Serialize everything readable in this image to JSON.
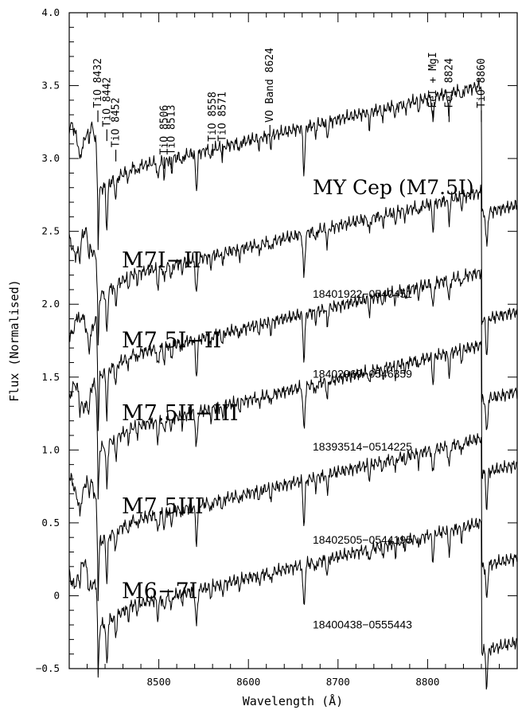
{
  "chart_data": {
    "type": "line",
    "xlabel": "Wavelength (Å)",
    "ylabel": "Flux (Normalised)",
    "xlim": [
      8400,
      8900
    ],
    "ylim": [
      -0.5,
      4.0
    ],
    "x_ticks": [
      8500,
      8600,
      8700,
      8800
    ],
    "y_ticks": [
      -0.5,
      0,
      0.5,
      1.0,
      1.5,
      2.0,
      2.5,
      3.0,
      3.5,
      4.0
    ],
    "y_tick_labels": [
      "−0.5",
      "0",
      "0.5",
      "1.0",
      "1.5",
      "2.0",
      "2.5",
      "3.0",
      "3.5",
      "4.0"
    ],
    "series": [
      {
        "spectral_type": "MY Cep (M7.5I)",
        "star_id": "",
        "level": 3.0
      },
      {
        "spectral_type": "M7I−II",
        "star_id": "18401922−0540451",
        "level": 2.27
      },
      {
        "spectral_type": "M7.5I−II",
        "star_id": "18402969−0546359",
        "level": 1.72
      },
      {
        "spectral_type": "M7.5II−III",
        "star_id": "18393514−0514225",
        "level": 1.22
      },
      {
        "spectral_type": "M7.5III",
        "star_id": "18402505−0544195",
        "level": 0.58
      },
      {
        "spectral_type": "M6−7I",
        "star_id": "18400438−0555443",
        "level": 0.0
      }
    ],
    "line_ids": [
      {
        "text": "TiO 8432",
        "wl": 8432,
        "tick_bottom": 3.25,
        "tick_top": 3.33
      },
      {
        "text": "TiO 8442",
        "wl": 8442,
        "tick_bottom": 3.12,
        "tick_top": 3.2
      },
      {
        "text": "TiO 8452",
        "wl": 8452,
        "tick_bottom": 2.98,
        "tick_top": 3.06
      },
      {
        "text": "TiO 8506",
        "wl": 8506,
        "tick_bottom": 2.93,
        "tick_top": 3.01
      },
      {
        "text": "TiO 8513",
        "wl": 8514,
        "tick_bottom": 2.93,
        "tick_top": 3.01
      },
      {
        "text": "TiO 8558",
        "wl": 8560,
        "tick_bottom": 3.02,
        "tick_top": 3.1
      },
      {
        "text": "TiO 8571",
        "wl": 8571,
        "tick_bottom": 3.02,
        "tick_top": 3.1
      },
      {
        "text": "VO Band 8624",
        "wl": 8624,
        "tick_bottom": 3.15,
        "tick_top": 3.23
      },
      {
        "text": "FeI + MgI",
        "wl": 8806,
        "tick_bottom": 3.25,
        "tick_top": 3.33
      },
      {
        "text": "FeI 8824",
        "wl": 8824,
        "tick_bottom": 3.25,
        "tick_top": 3.33
      },
      {
        "text": "TiO 8860",
        "wl": 8860,
        "tick_bottom": 3.25,
        "tick_top": 3.33
      }
    ]
  }
}
